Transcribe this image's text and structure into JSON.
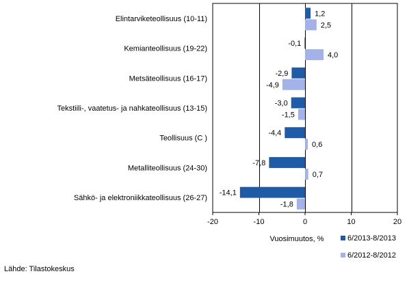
{
  "chart_data": {
    "type": "bar",
    "orientation": "horizontal",
    "categories": [
      "Elintarviketeollisuus (10-11)",
      "Kemianteollisuus (19-22)",
      "Metsäteollisuus (16-17)",
      "Tekstiili-, vaatetus- ja nahkateollisuus (13-15)",
      "Teollisuus (C )",
      "Metalliteollisuus (24-30)",
      "Sähkö- ja elektroniikkateollisuus (26-27)"
    ],
    "series": [
      {
        "name": "6/2013-8/2013",
        "color": "#1f5ca8",
        "values": [
          1.2,
          -0.1,
          -2.9,
          -3.0,
          -4.4,
          -7.8,
          -14.1
        ],
        "labels": [
          "1,2",
          "-0,1",
          "-2,9",
          "-3,0",
          "-4,4",
          "-7,8",
          "-14,1"
        ]
      },
      {
        "name": "6/2012-8/2012",
        "color": "#a3b3ea",
        "values": [
          2.5,
          4.0,
          -4.9,
          -1.5,
          0.6,
          0.7,
          -1.8
        ],
        "labels": [
          "2,5",
          "4,0",
          "-4,9",
          "-1,5",
          "0,6",
          "0,7",
          "-1,8"
        ]
      }
    ],
    "xlim": [
      -20,
      20
    ],
    "xticks": [
      -20,
      -10,
      0,
      10,
      20
    ],
    "xlabel": "Vuosimuutos, %",
    "grid": true,
    "legend_position": "bottom-right"
  },
  "source_text": "Lähde: Tilastokeskus"
}
